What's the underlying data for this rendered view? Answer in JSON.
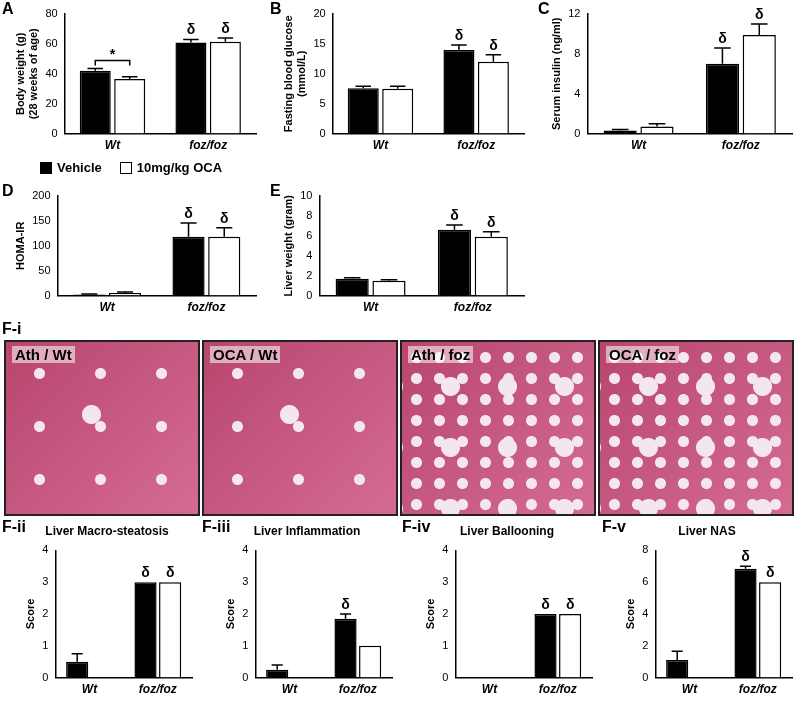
{
  "chart_data": [
    {
      "type": "bar",
      "panel": "A",
      "y_label": [
        "Body weight (g)",
        "(28 weeks of age)"
      ],
      "categories": [
        "Wt",
        "foz/foz"
      ],
      "series": [
        {
          "name": "Vehicle",
          "color": "#000000",
          "values": [
            42,
            61
          ],
          "errors": [
            1.5,
            2
          ]
        },
        {
          "name": "10mg/kg OCA",
          "color": "#ffffff",
          "values": [
            36.5,
            61.5
          ],
          "errors": [
            1.5,
            2.5
          ]
        }
      ],
      "ylim": [
        0,
        80
      ],
      "yticks": [
        0,
        20,
        40,
        60,
        80
      ],
      "grid": false,
      "legend": "bottom",
      "annotations": [
        {
          "series": "Vehicle",
          "category": "foz/foz",
          "text": "δ"
        },
        {
          "series": "10mg/kg OCA",
          "category": "foz/foz",
          "text": "δ"
        }
      ],
      "brackets": [
        {
          "category": "Wt",
          "text": "*"
        }
      ]
    },
    {
      "type": "bar",
      "panel": "B",
      "y_label": [
        "Fasting blood glucose",
        "(mmol/L)"
      ],
      "categories": [
        "Wt",
        "foz/foz"
      ],
      "series": [
        {
          "name": "Vehicle",
          "color": "#000000",
          "values": [
            7.6,
            14
          ],
          "errors": [
            0.3,
            0.8
          ]
        },
        {
          "name": "10mg/kg OCA",
          "color": "#ffffff",
          "values": [
            7.5,
            12
          ],
          "errors": [
            0.4,
            1.2
          ]
        }
      ],
      "ylim": [
        0,
        20
      ],
      "yticks": [
        0,
        5,
        10,
        15,
        20
      ],
      "grid": false,
      "annotations": [
        {
          "series": "Vehicle",
          "category": "foz/foz",
          "text": "δ"
        },
        {
          "series": "10mg/kg OCA",
          "category": "foz/foz",
          "text": "δ"
        }
      ]
    },
    {
      "type": "bar",
      "panel": "C",
      "y_label": [
        "Serum insulin (ng/ml)"
      ],
      "categories": [
        "Wt",
        "foz/foz"
      ],
      "series": [
        {
          "name": "Vehicle",
          "color": "#000000",
          "values": [
            0.3,
            7
          ],
          "errors": [
            0.1,
            1.6
          ]
        },
        {
          "name": "10mg/kg OCA",
          "color": "#ffffff",
          "values": [
            0.7,
            9.9
          ],
          "errors": [
            0.3,
            1.1
          ]
        }
      ],
      "ylim": [
        0,
        12
      ],
      "yticks": [
        0,
        4,
        8,
        12
      ],
      "grid": false,
      "annotations": [
        {
          "series": "Vehicle",
          "category": "foz/foz",
          "text": "δ"
        },
        {
          "series": "10mg/kg OCA",
          "category": "foz/foz",
          "text": "δ"
        }
      ]
    },
    {
      "type": "bar",
      "panel": "D",
      "y_label": [
        "HOMA-IR"
      ],
      "categories": [
        "Wt",
        "foz/foz"
      ],
      "series": [
        {
          "name": "Vehicle",
          "color": "#000000",
          "values": [
            2,
            118
          ],
          "errors": [
            1,
            28
          ]
        },
        {
          "name": "10mg/kg OCA",
          "color": "#ffffff",
          "values": [
            5,
            118
          ],
          "errors": [
            2,
            18
          ]
        }
      ],
      "ylim": [
        0,
        200
      ],
      "yticks": [
        0,
        50,
        100,
        150,
        200
      ],
      "grid": false,
      "annotations": [
        {
          "series": "Vehicle",
          "category": "foz/foz",
          "text": "δ"
        },
        {
          "series": "10mg/kg OCA",
          "category": "foz/foz",
          "text": "δ"
        }
      ]
    },
    {
      "type": "bar",
      "panel": "E",
      "y_label": [
        "Liver weight (gram)"
      ],
      "categories": [
        "Wt",
        "foz/foz"
      ],
      "series": [
        {
          "name": "Vehicle",
          "color": "#000000",
          "values": [
            1.7,
            6.6
          ],
          "errors": [
            0.1,
            0.5
          ]
        },
        {
          "name": "10mg/kg OCA",
          "color": "#ffffff",
          "values": [
            1.5,
            5.9
          ],
          "errors": [
            0.1,
            0.5
          ]
        }
      ],
      "ylim": [
        0,
        10
      ],
      "yticks": [
        0,
        2,
        4,
        6,
        8,
        10
      ],
      "grid": false,
      "annotations": [
        {
          "series": "Vehicle",
          "category": "foz/foz",
          "text": "δ"
        },
        {
          "series": "10mg/kg OCA",
          "category": "foz/foz",
          "text": "δ"
        }
      ]
    },
    {
      "type": "bar",
      "panel": "F-ii",
      "title": "Liver Macro-steatosis",
      "y_label": [
        "Score"
      ],
      "categories": [
        "Wt",
        "foz/foz"
      ],
      "series": [
        {
          "name": "Vehicle",
          "color": "#000000",
          "values": [
            0.5,
            3
          ],
          "errors": [
            0.25,
            0
          ]
        },
        {
          "name": "10mg/kg OCA",
          "color": "#ffffff",
          "values": [
            0,
            3
          ],
          "errors": [
            0,
            0
          ]
        }
      ],
      "ylim": [
        0,
        4
      ],
      "yticks": [
        0,
        1,
        2,
        3,
        4
      ],
      "grid": false,
      "annotations": [
        {
          "series": "Vehicle",
          "category": "foz/foz",
          "text": "δ"
        },
        {
          "series": "10mg/kg OCA",
          "category": "foz/foz",
          "text": "δ"
        }
      ]
    },
    {
      "type": "bar",
      "panel": "F-iii",
      "title": "Liver Inflammation",
      "y_label": [
        "Score"
      ],
      "categories": [
        "Wt",
        "foz/foz"
      ],
      "series": [
        {
          "name": "Vehicle",
          "color": "#000000",
          "values": [
            0.25,
            1.85
          ],
          "errors": [
            0.15,
            0.15
          ]
        },
        {
          "name": "10mg/kg OCA",
          "color": "#ffffff",
          "values": [
            0,
            1
          ],
          "errors": [
            0,
            0
          ]
        }
      ],
      "ylim": [
        0,
        4
      ],
      "yticks": [
        0,
        1,
        2,
        3,
        4
      ],
      "grid": false,
      "annotations": [
        {
          "series": "Vehicle",
          "category": "foz/foz",
          "text": "δ"
        }
      ]
    },
    {
      "type": "bar",
      "panel": "F-iv",
      "title": "Liver Ballooning",
      "y_label": [
        "Score"
      ],
      "categories": [
        "Wt",
        "foz/foz"
      ],
      "series": [
        {
          "name": "Vehicle",
          "color": "#000000",
          "values": [
            0,
            2
          ],
          "errors": [
            0,
            0
          ]
        },
        {
          "name": "10mg/kg OCA",
          "color": "#ffffff",
          "values": [
            0,
            2
          ],
          "errors": [
            0,
            0
          ]
        }
      ],
      "ylim": [
        0,
        4
      ],
      "yticks": [
        0,
        1,
        2,
        3,
        4
      ],
      "grid": false,
      "annotations": [
        {
          "series": "Vehicle",
          "category": "foz/foz",
          "text": "δ"
        },
        {
          "series": "10mg/kg OCA",
          "category": "foz/foz",
          "text": "δ"
        }
      ]
    },
    {
      "type": "bar",
      "panel": "F-v",
      "title": "Liver NAS",
      "y_label": [
        "Score"
      ],
      "categories": [
        "Wt",
        "foz/foz"
      ],
      "series": [
        {
          "name": "Vehicle",
          "color": "#000000",
          "values": [
            1.1,
            6.85
          ],
          "errors": [
            0.55,
            0.15
          ]
        },
        {
          "name": "10mg/kg OCA",
          "color": "#ffffff",
          "values": [
            0,
            6
          ],
          "errors": [
            0,
            0
          ]
        }
      ],
      "ylim": [
        0,
        8
      ],
      "yticks": [
        0,
        2,
        4,
        6,
        8
      ],
      "grid": false,
      "annotations": [
        {
          "series": "Vehicle",
          "category": "foz/foz",
          "text": "δ"
        },
        {
          "series": "10mg/kg OCA",
          "category": "foz/foz",
          "text": "δ"
        }
      ]
    }
  ],
  "images": {
    "panel": "F-i",
    "labels": [
      "Ath / Wt",
      "OCA / Wt",
      "Ath / foz",
      "OCA / foz"
    ]
  }
}
